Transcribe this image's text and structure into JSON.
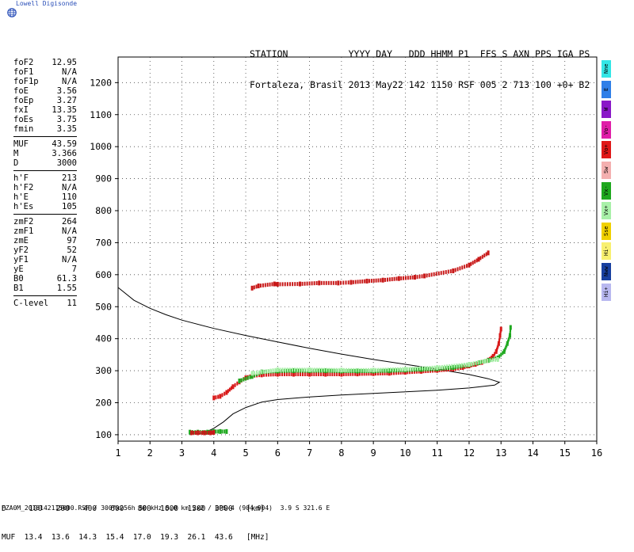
{
  "brand": {
    "name": "Lowell Digisonde"
  },
  "header": {
    "line1": "STATION           YYYY DAY   DDD HHMM P1  FFS S AXN PPS IGA PS",
    "line2": "Fortaleza, Brasil 2013 May22 142 1150 RSF 005 2 713 100 +0+ B2"
  },
  "scaled_parameters": [
    {
      "label": "foF2",
      "value": "12.95"
    },
    {
      "label": "foF1",
      "value": "N/A"
    },
    {
      "label": "foF1p",
      "value": "N/A"
    },
    {
      "label": "foE",
      "value": "3.56"
    },
    {
      "label": "foEp",
      "value": "3.27"
    },
    {
      "label": "fxI",
      "value": "13.35"
    },
    {
      "label": "foEs",
      "value": "3.75"
    },
    {
      "label": "fmin",
      "value": "3.35"
    },
    {
      "sep": true
    },
    {
      "label": "MUF",
      "value": "43.59"
    },
    {
      "label": "M",
      "value": "3.366"
    },
    {
      "label": "D",
      "value": "3000"
    },
    {
      "sep": true
    },
    {
      "label": "h'F",
      "value": "213"
    },
    {
      "label": "h'F2",
      "value": "N/A"
    },
    {
      "label": "h'E",
      "value": "110"
    },
    {
      "label": "h'Es",
      "value": "105"
    },
    {
      "sep": true
    },
    {
      "label": "zmF2",
      "value": "264"
    },
    {
      "label": "zmF1",
      "value": "N/A"
    },
    {
      "label": "zmE",
      "value": "97"
    },
    {
      "label": "yF2",
      "value": "52"
    },
    {
      "label": "yF1",
      "value": "N/A"
    },
    {
      "label": "yE",
      "value": "7"
    },
    {
      "label": "B0",
      "value": "61.3"
    },
    {
      "label": "B1",
      "value": "1.55"
    },
    {
      "sep": true
    },
    {
      "label": "C-level",
      "value": "11"
    }
  ],
  "legend": [
    {
      "label": "Nne",
      "color": "#33e6e6"
    },
    {
      "label": "E",
      "color": "#2f7fe8"
    },
    {
      "label": "W",
      "color": "#8a18c8"
    },
    {
      "label": "Vo-",
      "color": "#e01ea8"
    },
    {
      "label": "Vo+",
      "color": "#e01818"
    },
    {
      "label": "Sw",
      "color": "#f4b0b0"
    },
    {
      "label": "Vx-",
      "color": "#1ea81e"
    },
    {
      "label": "Vx+",
      "color": "#a8f0a8"
    },
    {
      "label": "Sse",
      "color": "#f0d000"
    },
    {
      "label": "Hi-",
      "color": "#f8f070"
    },
    {
      "label": "Nww",
      "color": "#1840a0"
    },
    {
      "label": "Hi+",
      "color": "#b8b8f0"
    }
  ],
  "footer": {
    "row1": "D     100   200   400   600   800  1000  1500  3000   [km]",
    "row2": "MUF  13.4  13.6  14.3  15.4  17.0  19.3  26.1  43.6   [MHz]",
    "fileline": "FZA0M_2013142115000.RSF / 300fx256h 50 kHz 5.0 km 2x2 / DPS-4 (904-904)  3.9 S 321.6 E"
  },
  "chart_data": {
    "type": "scatter",
    "title": "",
    "xlabel": "",
    "ylabel": "",
    "xlim": [
      1,
      16
    ],
    "ylim": [
      80,
      1280
    ],
    "xticks": [
      "1",
      "2",
      "3",
      "4",
      "5",
      "6",
      "7",
      "8",
      "9",
      "10",
      "11",
      "12",
      "13",
      "14",
      "15",
      "16"
    ],
    "yticks": [
      "100",
      "200",
      "300",
      "400",
      "500",
      "600",
      "700",
      "800",
      "900",
      "1000",
      "1100",
      "1200"
    ],
    "grid": "dotted",
    "series": [
      {
        "color": "#d81818",
        "kind": "trace",
        "points": [
          [
            4.0,
            215
          ],
          [
            4.2,
            220
          ],
          [
            4.4,
            232
          ],
          [
            4.6,
            250
          ],
          [
            4.8,
            265
          ],
          [
            5.0,
            278
          ],
          [
            5.2,
            284
          ],
          [
            5.5,
            287
          ],
          [
            6.0,
            289
          ],
          [
            6.5,
            289
          ],
          [
            7.0,
            289
          ],
          [
            7.5,
            289
          ],
          [
            8.0,
            289
          ],
          [
            8.5,
            290
          ],
          [
            9.0,
            291
          ],
          [
            9.5,
            292
          ],
          [
            10.0,
            295
          ],
          [
            10.5,
            298
          ],
          [
            11.0,
            301
          ],
          [
            11.5,
            305
          ],
          [
            11.8,
            310
          ],
          [
            12.0,
            315
          ],
          [
            12.2,
            320
          ],
          [
            12.4,
            326
          ],
          [
            12.6,
            333
          ],
          [
            12.75,
            345
          ],
          [
            12.85,
            360
          ],
          [
            12.93,
            385
          ],
          [
            12.97,
            410
          ],
          [
            13.0,
            430
          ]
        ]
      },
      {
        "color": "#1ea81e",
        "kind": "trace",
        "points": [
          [
            4.8,
            268
          ],
          [
            5.2,
            282
          ],
          [
            5.5,
            296
          ],
          [
            6.0,
            299
          ],
          [
            6.5,
            300
          ],
          [
            7.0,
            300
          ],
          [
            7.5,
            300
          ],
          [
            8.0,
            299
          ],
          [
            8.5,
            299
          ],
          [
            9.0,
            299
          ],
          [
            9.5,
            300
          ],
          [
            10.0,
            302
          ],
          [
            10.5,
            304
          ],
          [
            11.0,
            306
          ],
          [
            11.5,
            310
          ],
          [
            12.0,
            318
          ],
          [
            12.3,
            325
          ],
          [
            12.6,
            332
          ],
          [
            12.9,
            340
          ],
          [
            13.1,
            360
          ],
          [
            13.2,
            385
          ],
          [
            13.28,
            410
          ],
          [
            13.3,
            435
          ]
        ]
      },
      {
        "color": "#a8f0a8",
        "kind": "trace",
        "points": [
          [
            5.2,
            292
          ],
          [
            6.0,
            303
          ],
          [
            7.0,
            303
          ],
          [
            8.0,
            302
          ],
          [
            9.0,
            302
          ],
          [
            10.0,
            305
          ],
          [
            11.0,
            310
          ],
          [
            12.0,
            320
          ],
          [
            12.5,
            330
          ],
          [
            12.9,
            335
          ]
        ]
      },
      {
        "color": "#c81818",
        "kind": "trace",
        "points": [
          [
            5.2,
            558
          ],
          [
            5.4,
            565
          ],
          [
            5.9,
            571
          ],
          [
            6.0,
            570
          ],
          [
            6.7,
            571
          ],
          [
            7.3,
            574
          ],
          [
            7.9,
            574
          ],
          [
            8.3,
            576
          ],
          [
            8.8,
            580
          ],
          [
            9.3,
            583
          ],
          [
            9.8,
            588
          ],
          [
            10.3,
            592
          ],
          [
            10.6,
            596
          ],
          [
            11.5,
            612
          ],
          [
            12.0,
            630
          ],
          [
            12.3,
            648
          ],
          [
            12.6,
            668
          ]
        ]
      },
      {
        "color": "#1ea81e",
        "kind": "trace",
        "points": [
          [
            3.25,
            108
          ],
          [
            3.5,
            108
          ],
          [
            3.8,
            108
          ],
          [
            4.0,
            110
          ],
          [
            4.2,
            110
          ],
          [
            4.4,
            110
          ]
        ]
      },
      {
        "color": "#c81818",
        "kind": "trace",
        "points": [
          [
            3.3,
            106
          ],
          [
            3.5,
            106
          ],
          [
            3.7,
            106
          ],
          [
            3.9,
            106
          ],
          [
            4.0,
            107
          ]
        ]
      }
    ],
    "profile": {
      "color": "#000000",
      "points": [
        [
          1.0,
          560
        ],
        [
          1.5,
          520
        ],
        [
          2.0,
          495
        ],
        [
          2.5,
          475
        ],
        [
          3.0,
          458
        ],
        [
          4.0,
          432
        ],
        [
          5.0,
          410
        ],
        [
          6.0,
          390
        ],
        [
          7.0,
          370
        ],
        [
          8.0,
          352
        ],
        [
          9.0,
          335
        ],
        [
          10.0,
          320
        ],
        [
          11.0,
          305
        ],
        [
          12.0,
          288
        ],
        [
          12.6,
          275
        ],
        [
          12.95,
          264
        ],
        [
          12.8,
          255
        ],
        [
          12.0,
          246
        ],
        [
          11.0,
          239
        ],
        [
          10.0,
          234
        ],
        [
          9.0,
          229
        ],
        [
          8.0,
          224
        ],
        [
          7.0,
          218
        ],
        [
          6.0,
          210
        ],
        [
          5.5,
          202
        ],
        [
          5.0,
          185
        ],
        [
          4.6,
          165
        ],
        [
          4.3,
          140
        ],
        [
          4.0,
          120
        ],
        [
          3.7,
          106
        ],
        [
          3.4,
          102
        ]
      ]
    }
  }
}
